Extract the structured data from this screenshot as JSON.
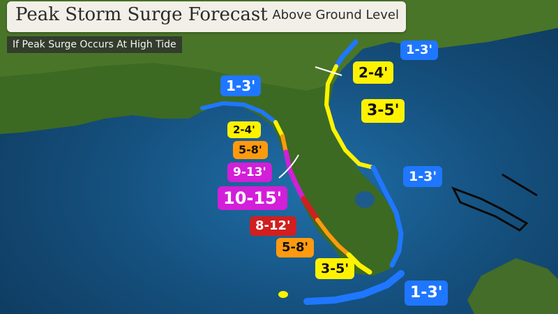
{
  "header": {
    "title": "Peak Storm Surge Forecast",
    "subtitle": "Above Ground Level",
    "note": "If Peak Surge Occurs At High Tide"
  },
  "colors": {
    "blue": "#1f77ff",
    "yellow": "#fff200",
    "orange": "#ff9a0f",
    "magenta": "#d21fd8",
    "red": "#d11f1f"
  },
  "labels": {
    "east_1": "1-3'",
    "gulf_1": "1-3'",
    "ne_1": "2-4'",
    "ne_2": "3-5'",
    "east_2": "1-3'",
    "w_1": "2-4'",
    "w_2": "5-8'",
    "w_3": "9-13'",
    "w_4": "10-15'",
    "w_5": "8-12'",
    "w_6": "5-8'",
    "s_1": "3-5'",
    "keys": "1-3'"
  }
}
